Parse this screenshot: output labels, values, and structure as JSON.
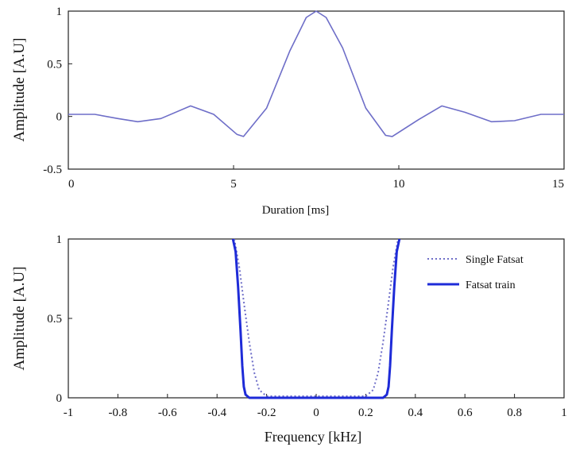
{
  "chart_data": [
    {
      "type": "line",
      "xlabel": "Duration [ms]",
      "ylabel": "Amplitude [A.U]",
      "xlim": [
        0,
        15
      ],
      "ylim": [
        -0.5,
        1
      ],
      "xticks": [
        "0",
        "5",
        "10",
        "15"
      ],
      "yticks": [
        "-0.5",
        "0",
        "0.5",
        "1"
      ],
      "grid": false,
      "series": [
        {
          "color": "#6e6ec8",
          "style": "solid",
          "x": [
            0,
            0.8,
            1.5,
            2.1,
            2.8,
            3.7,
            4.4,
            5.1,
            5.3,
            6.0,
            6.7,
            7.2,
            7.5,
            7.8,
            8.3,
            9.0,
            9.6,
            9.8,
            10.6,
            11.3,
            12.0,
            12.8,
            13.5,
            14.3,
            15
          ],
          "y": [
            0.02,
            0.02,
            -0.02,
            -0.05,
            -0.02,
            0.1,
            0.02,
            -0.17,
            -0.19,
            0.08,
            0.62,
            0.94,
            1.0,
            0.94,
            0.65,
            0.08,
            -0.18,
            -0.19,
            -0.03,
            0.1,
            0.04,
            -0.05,
            -0.04,
            0.02,
            0.02
          ]
        }
      ]
    },
    {
      "type": "line",
      "xlabel": "Frequency [kHz]",
      "ylabel": "Amplitude [A.U]",
      "xlim": [
        -1,
        1
      ],
      "ylim": [
        0,
        1
      ],
      "xticks": [
        "-1",
        "-0.8",
        "-0.6",
        "-0.4",
        "-0.2",
        "0",
        "0.2",
        "0.4",
        "0.6",
        "0.8",
        "1"
      ],
      "yticks": [
        "0",
        "0.5",
        "1"
      ],
      "grid": false,
      "legend_position": "top-right",
      "series": [
        {
          "name": "Single Fatsat",
          "color": "#6e6ec8",
          "style": "dotted",
          "x": [
            -0.33,
            -0.31,
            -0.29,
            -0.27,
            -0.25,
            -0.23,
            -0.2,
            0,
            0.2,
            0.23,
            0.25,
            0.27,
            0.29,
            0.31,
            0.33
          ],
          "y": [
            1.0,
            0.82,
            0.58,
            0.35,
            0.16,
            0.05,
            0.01,
            0.01,
            0.01,
            0.05,
            0.16,
            0.35,
            0.58,
            0.82,
            1.0
          ]
        },
        {
          "name": "Fatsat train",
          "color": "#1e2bd8",
          "style": "solid",
          "x": [
            -0.336,
            -0.325,
            -0.315,
            -0.305,
            -0.298,
            -0.292,
            -0.285,
            -0.27,
            -0.2,
            0,
            0.2,
            0.27,
            0.285,
            0.292,
            0.298,
            0.305,
            0.315,
            0.325,
            0.336
          ],
          "y": [
            1.0,
            0.92,
            0.7,
            0.42,
            0.2,
            0.07,
            0.02,
            0.0,
            0.0,
            0.0,
            0.0,
            0.0,
            0.02,
            0.07,
            0.2,
            0.42,
            0.7,
            0.92,
            1.0
          ]
        }
      ]
    }
  ]
}
